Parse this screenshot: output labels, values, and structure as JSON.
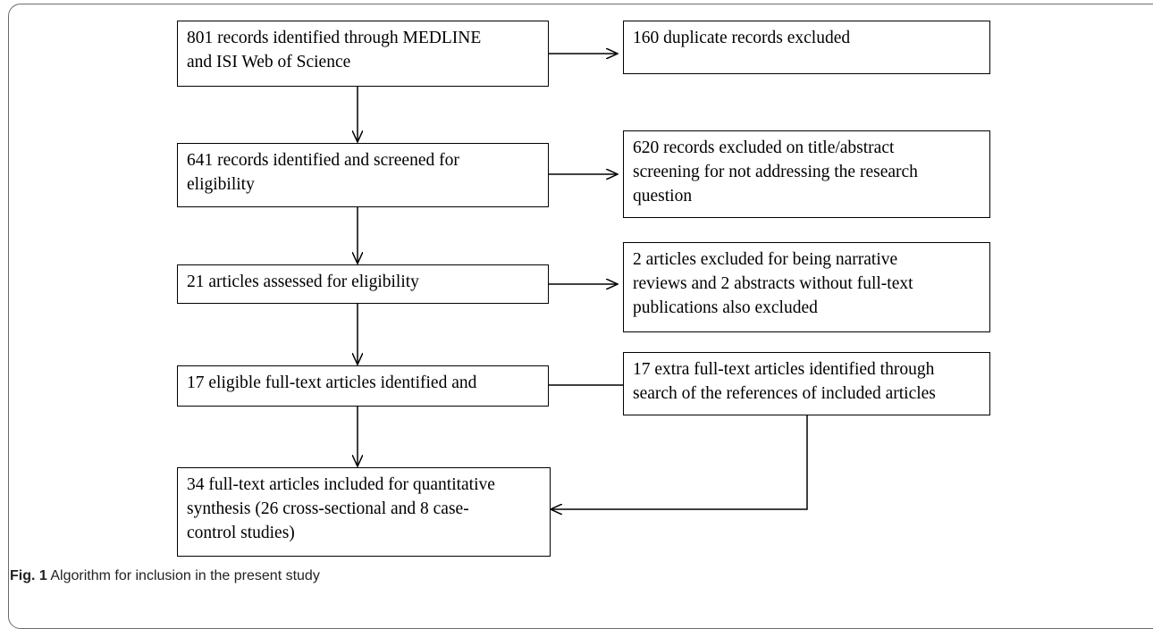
{
  "boxes": {
    "identified": {
      "lines": [
        "801 records identified through MEDLINE",
        "and ISI Web of Science"
      ]
    },
    "duplicates": {
      "lines": [
        "160 duplicate records excluded"
      ]
    },
    "screened": {
      "lines": [
        "641 records identified and screened for",
        "eligibility"
      ]
    },
    "excluded_title": {
      "lines": [
        "620 records excluded on title/abstract",
        "screening for not addressing the research",
        "question"
      ]
    },
    "assessed": {
      "lines": [
        "21 articles assessed for eligibility"
      ]
    },
    "excluded_reviews": {
      "lines": [
        "2 articles excluded for being narrative",
        "reviews and 2 abstracts without full-text",
        "publications also excluded"
      ]
    },
    "eligible": {
      "lines": [
        "17 eligible full-text articles identified and"
      ]
    },
    "extra": {
      "lines": [
        "17 extra full-text articles identified through",
        "search of the references of included articles"
      ]
    },
    "included": {
      "lines": [
        "34 full-text articles included for quantitative",
        "synthesis (26 cross-sectional and 8 case-",
        "control studies)"
      ]
    }
  },
  "caption": {
    "label": "Fig. 1",
    "text": " Algorithm for inclusion in the present study"
  }
}
